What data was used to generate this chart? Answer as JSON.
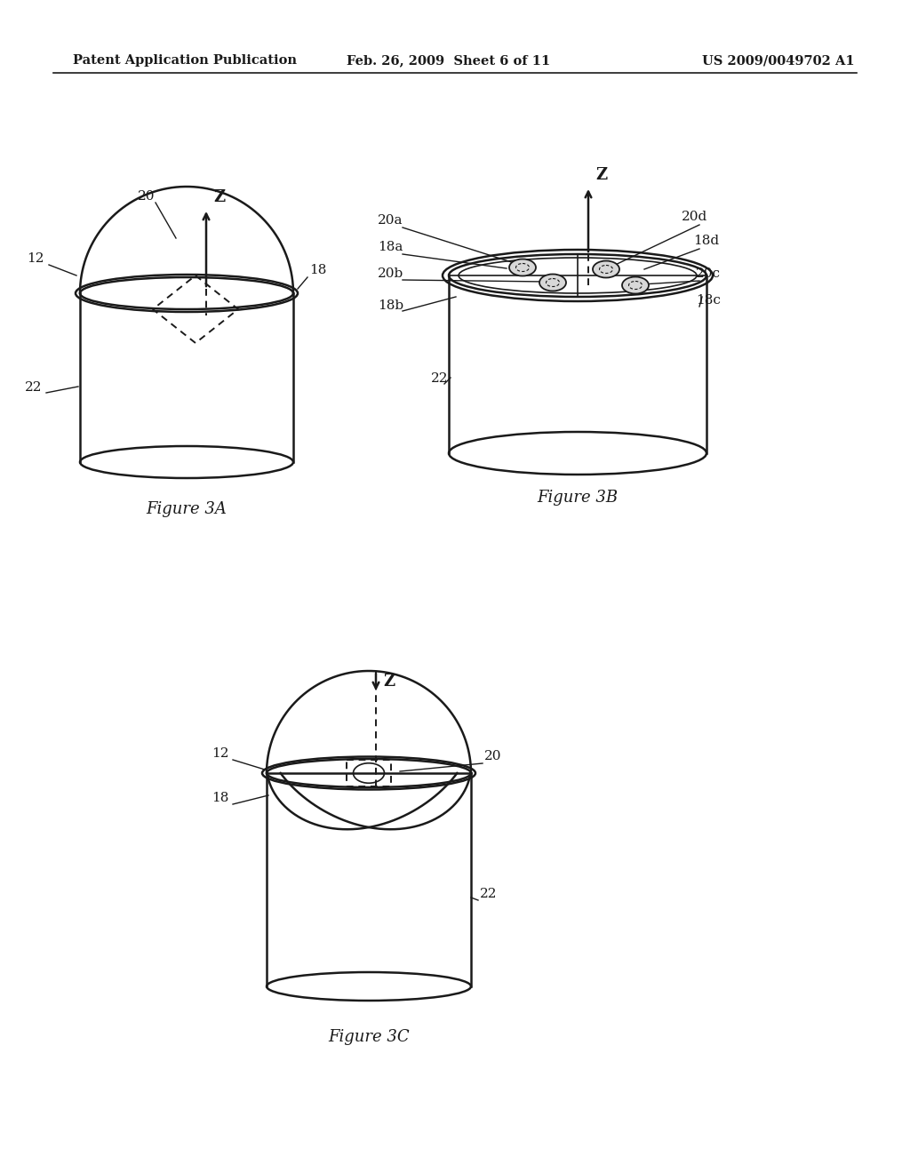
{
  "header_left": "Patent Application Publication",
  "header_mid": "Feb. 26, 2009  Sheet 6 of 11",
  "header_right": "US 2009/0049702 A1",
  "fig3a_caption": "Figure 3A",
  "fig3b_caption": "Figure 3B",
  "fig3c_caption": "Figure 3C",
  "bg_color": "#ffffff",
  "line_color": "#1a1a1a",
  "label_color": "#1a1a1a"
}
